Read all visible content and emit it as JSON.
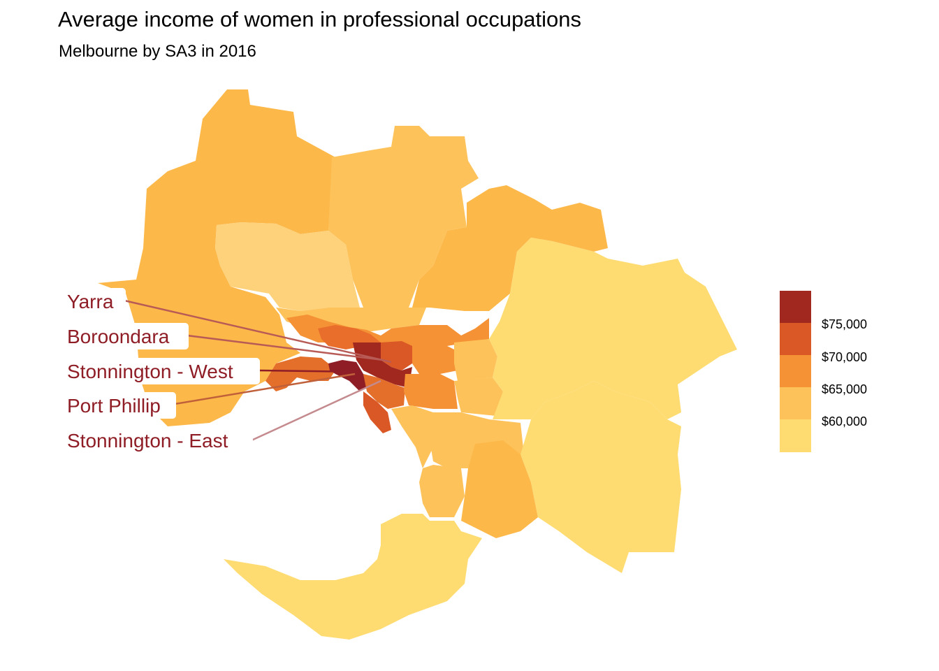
{
  "title": "Average income of women in professional occupations",
  "subtitle": "Melbourne by SA3 in 2016",
  "legend": {
    "labels": [
      "$75,000",
      "$70,000",
      "$65,000",
      "$60,000"
    ],
    "bins": [
      {
        "range": "> 75000",
        "color": "#a1281e"
      },
      {
        "range": "70000-75000",
        "color": "#d95825"
      },
      {
        "range": "65000-70000",
        "color": "#f59235"
      },
      {
        "range": "60000-65000",
        "color": "#fdc25a"
      },
      {
        "range": "< 60000",
        "color": "#fedc72"
      }
    ]
  },
  "annotations": [
    {
      "label": "Yarra",
      "line_color": "#b85a55"
    },
    {
      "label": "Boroondara",
      "line_color": "#b85a55"
    },
    {
      "label": "Stonnington - West",
      "line_color": "#8f1d26"
    },
    {
      "label": "Port Phillip",
      "line_color": "#c0603a"
    },
    {
      "label": "Stonnington - East",
      "line_color": "#c48a8e"
    }
  ],
  "colors": {
    "darkest": "#a1281e",
    "dark": "#d95825",
    "mid": "#f59235",
    "light": "#fdb84a",
    "lighter": "#fdc25a",
    "lightest": "#fedc72",
    "label_text": "#8f1d26"
  }
}
